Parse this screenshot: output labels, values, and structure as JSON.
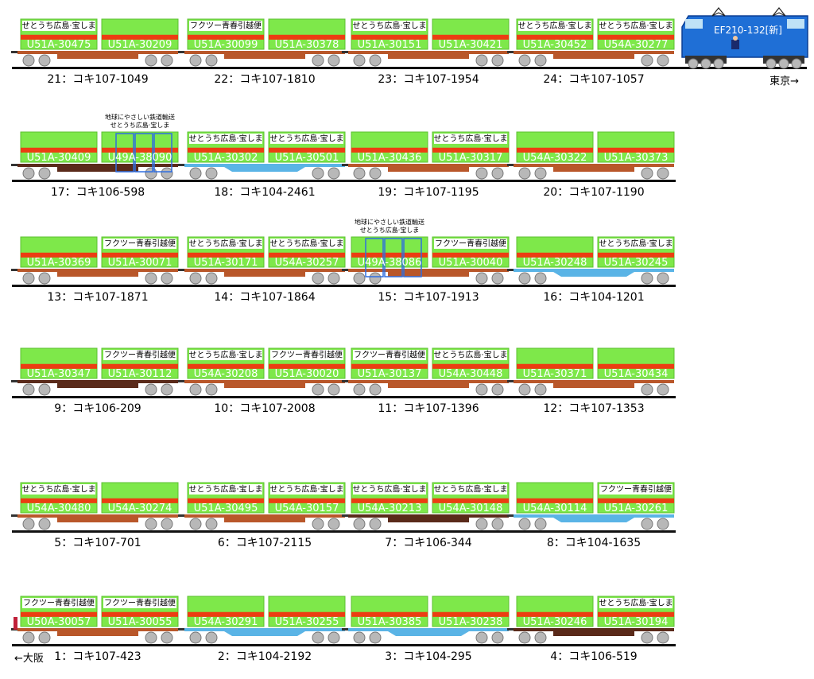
{
  "colors": {
    "container_green": "#7ee84a",
    "container_edge": "#5cc031",
    "container_stripe": "#ec3d12",
    "container_text": "#ffffff",
    "deck_brown": "#b9572a",
    "deck_dark": "#5a2a1a",
    "deck_blue": "#5ab4e6",
    "rail": "#111111",
    "wheel": "#b8b8b8",
    "wheel_edge": "#777777",
    "loco_blue": "#1f6fd6",
    "loco_dark": "#0c3f94",
    "window_blue": "#bfe2f6"
  },
  "direction_tokyo": "東京→",
  "direction_osaka": "←大阪",
  "locomotive": {
    "name": "EF210-132[新]"
  },
  "eco_slogan": "地球にやさしい鉄道輸送",
  "rows": [
    {
      "cars": [
        {
          "label": "21：コキ107-1049",
          "deck": "brown",
          "containers": [
            {
              "number": "U51A-30475",
              "top": "せとうち広島·宝しま"
            },
            {
              "number": "U51A-30209",
              "top": ""
            }
          ]
        },
        {
          "label": "22：コキ107-1810",
          "deck": "brown",
          "containers": [
            {
              "number": "U51A-30099",
              "top": "フクツー青春引越便"
            },
            {
              "number": "U51A-30378",
              "top": ""
            }
          ]
        },
        {
          "label": "23：コキ107-1954",
          "deck": "brown",
          "containers": [
            {
              "number": "U51A-30151",
              "top": "せとうち広島·宝しま"
            },
            {
              "number": "U51A-30421",
              "top": ""
            }
          ]
        },
        {
          "label": "24：コキ107-1057",
          "deck": "brown",
          "containers": [
            {
              "number": "U51A-30452",
              "top": "せとうち広島·宝しま"
            },
            {
              "number": "U54A-30277",
              "top": "せとうち広島·宝しま"
            }
          ]
        }
      ]
    },
    {
      "cars": [
        {
          "label": "17：コキ106-598",
          "deck": "dark",
          "containers": [
            {
              "number": "U51A-30409",
              "top": ""
            },
            {
              "number": "U49A-38090",
              "top": "",
              "eco": true,
              "slogan2": "せとうち広島·宝しま"
            }
          ]
        },
        {
          "label": "18：コキ104-2461",
          "deck": "blue",
          "containers": [
            {
              "number": "U51A-30302",
              "top": "せとうち広島·宝しま"
            },
            {
              "number": "U51A-30501",
              "top": "せとうち広島·宝しま"
            }
          ]
        },
        {
          "label": "19：コキ107-1195",
          "deck": "brown",
          "containers": [
            {
              "number": "U51A-30436",
              "top": ""
            },
            {
              "number": "U51A-30317",
              "top": "せとうち広島·宝しま"
            }
          ]
        },
        {
          "label": "20：コキ107-1190",
          "deck": "brown",
          "containers": [
            {
              "number": "U54A-30322",
              "top": ""
            },
            {
              "number": "U51A-30373",
              "top": ""
            }
          ]
        }
      ]
    },
    {
      "cars": [
        {
          "label": "13：コキ107-1871",
          "deck": "brown",
          "containers": [
            {
              "number": "U51A-30369",
              "top": ""
            },
            {
              "number": "U51A-30071",
              "top": "フクツー青春引越便"
            }
          ]
        },
        {
          "label": "14：コキ107-1864",
          "deck": "brown",
          "containers": [
            {
              "number": "U51A-30171",
              "top": "せとうち広島·宝しま"
            },
            {
              "number": "U54A-30257",
              "top": "せとうち広島·宝しま"
            }
          ]
        },
        {
          "label": "15：コキ107-1913",
          "deck": "brown",
          "containers": [
            {
              "number": "U49A-38086",
              "top": "",
              "eco": true,
              "slogan2": "せとうち広島·宝しま"
            },
            {
              "number": "U51A-30040",
              "top": "フクツー青春引越便"
            }
          ]
        },
        {
          "label": "16：コキ104-1201",
          "deck": "blue",
          "containers": [
            {
              "number": "U51A-30248",
              "top": ""
            },
            {
              "number": "U51A-30245",
              "top": "せとうち広島·宝しま"
            }
          ]
        }
      ]
    },
    {
      "cars": [
        {
          "label": "9：コキ106-209",
          "deck": "dark",
          "containers": [
            {
              "number": "U51A-30347",
              "top": ""
            },
            {
              "number": "U51A-30112",
              "top": "フクツー青春引越便"
            }
          ]
        },
        {
          "label": "10：コキ107-2008",
          "deck": "brown",
          "containers": [
            {
              "number": "U54A-30208",
              "top": "せとうち広島·宝しま"
            },
            {
              "number": "U51A-30020",
              "top": "フクツー青春引越便"
            }
          ]
        },
        {
          "label": "11：コキ107-1396",
          "deck": "brown",
          "containers": [
            {
              "number": "U51A-30137",
              "top": "フクツー青春引越便"
            },
            {
              "number": "U54A-30448",
              "top": "せとうち広島·宝しま"
            }
          ]
        },
        {
          "label": "12：コキ107-1353",
          "deck": "brown",
          "containers": [
            {
              "number": "U51A-30371",
              "top": ""
            },
            {
              "number": "U51A-30434",
              "top": ""
            }
          ]
        }
      ]
    },
    {
      "cars": [
        {
          "label": "5：コキ107-701",
          "deck": "brown",
          "containers": [
            {
              "number": "U54A-30480",
              "top": "せとうち広島·宝しま"
            },
            {
              "number": "U54A-30274",
              "top": ""
            }
          ]
        },
        {
          "label": "6：コキ107-2115",
          "deck": "brown",
          "containers": [
            {
              "number": "U51A-30495",
              "top": "せとうち広島·宝しま"
            },
            {
              "number": "U54A-30157",
              "top": "せとうち広島·宝しま"
            }
          ]
        },
        {
          "label": "7：コキ106-344",
          "deck": "dark",
          "containers": [
            {
              "number": "U54A-30213",
              "top": "せとうち広島·宝しま"
            },
            {
              "number": "U54A-30148",
              "top": "せとうち広島·宝しま"
            }
          ]
        },
        {
          "label": "8：コキ104-1635",
          "deck": "blue",
          "containers": [
            {
              "number": "U54A-30114",
              "top": ""
            },
            {
              "number": "U51A-30261",
              "top": "フクツー青春引越便"
            }
          ]
        }
      ]
    },
    {
      "cars": [
        {
          "label": "1：コキ107-423",
          "deck": "brown",
          "containers": [
            {
              "number": "U50A-30057",
              "top": "フクツー青春引越便"
            },
            {
              "number": "U51A-30055",
              "top": "フクツー青春引越便"
            }
          ]
        },
        {
          "label": "2：コキ104-2192",
          "deck": "blue",
          "containers": [
            {
              "number": "U54A-30291",
              "top": ""
            },
            {
              "number": "U51A-30255",
              "top": ""
            }
          ]
        },
        {
          "label": "3：コキ104-295",
          "deck": "blue",
          "containers": [
            {
              "number": "U51A-30385",
              "top": ""
            },
            {
              "number": "U51A-30238",
              "top": ""
            }
          ]
        },
        {
          "label": "4：コキ106-519",
          "deck": "dark",
          "containers": [
            {
              "number": "U51A-30246",
              "top": ""
            },
            {
              "number": "U51A-30194",
              "top": "せとうち広島·宝しま"
            }
          ]
        }
      ]
    }
  ]
}
